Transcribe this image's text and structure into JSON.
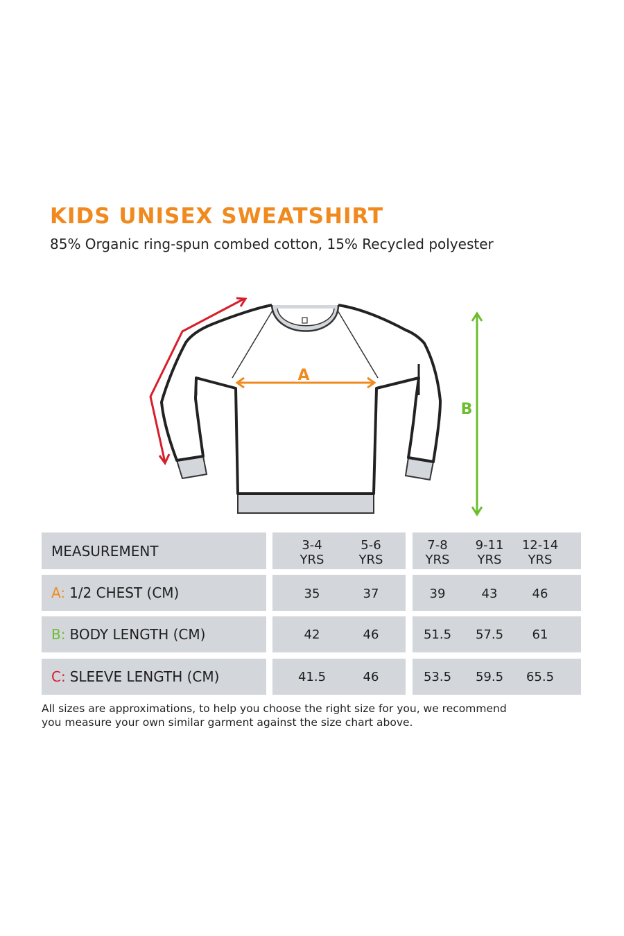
{
  "title": "KIDS UNISEX SWEATSHIRT",
  "subtitle": "85% Organic ring-spun combed cotton, 15% Recycled polyester",
  "diagram": {
    "label_a": "A",
    "label_b": "B",
    "colors": {
      "a": "#f08a1f",
      "b": "#6cbd2e",
      "c": "#d81e2b"
    }
  },
  "table": {
    "header_label": "MEASUREMENT",
    "sizes": [
      {
        "top": "3-4",
        "bottom": "YRS"
      },
      {
        "top": "5-6",
        "bottom": "YRS"
      },
      {
        "top": "7-8",
        "bottom": "YRS"
      },
      {
        "top": "9-11",
        "bottom": "YRS"
      },
      {
        "top": "12-14",
        "bottom": "YRS"
      }
    ],
    "rows": [
      {
        "letter": "A:",
        "label": "1/2 CHEST (CM)",
        "values": [
          "35",
          "37",
          "39",
          "43",
          "46"
        ]
      },
      {
        "letter": "B:",
        "label": "BODY LENGTH (CM)",
        "values": [
          "42",
          "46",
          "51.5",
          "57.5",
          "61"
        ]
      },
      {
        "letter": "C:",
        "label": "SLEEVE LENGTH (CM)",
        "values": [
          "41.5",
          "46",
          "53.5",
          "59.5",
          "65.5"
        ]
      }
    ]
  },
  "note_line1": "All sizes are approximations, to help you choose the right size for you, we recommend",
  "note_line2": "you measure your own similar garment against the size chart above."
}
